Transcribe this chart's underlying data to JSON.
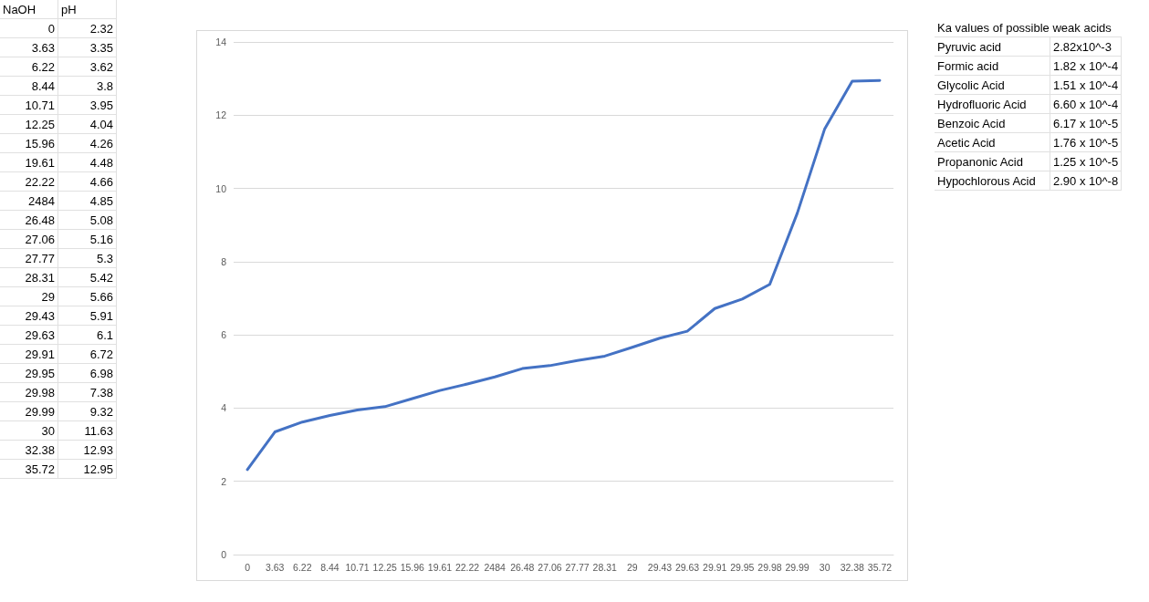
{
  "chart_data": [
    {
      "type": "other",
      "annotations": [
        "NaOH",
        "pH",
        "0",
        "2.32",
        "3.63",
        "3.35",
        "6.22",
        "3.62",
        "8.44",
        "3.8",
        "10.71",
        "3.95",
        "12.25",
        "4.04",
        "15.96",
        "4.26",
        "19.61",
        "4.48",
        "22.22",
        "4.66",
        "2484",
        "4.85",
        "26.48",
        "5.08",
        "27.06",
        "5.16",
        "27.77",
        "5.3",
        "28.31",
        "5.42",
        "29",
        "5.66",
        "29.43",
        "5.91",
        "29.63",
        "6.1",
        "29.91",
        "6.72",
        "29.95",
        "6.98",
        "29.98",
        "7.38",
        "29.99",
        "9.32",
        "30",
        "11.63",
        "32.38",
        "12.93",
        "35.72",
        "12.95"
      ]
    },
    {
      "type": "line",
      "categories": [
        "0",
        "3.63",
        "6.22",
        "8.44",
        "10.71",
        "12.25",
        "15.96",
        "19.61",
        "22.22",
        "2484",
        "26.48",
        "27.06",
        "27.77",
        "28.31",
        "29",
        "29.43",
        "29.63",
        "29.91",
        "29.95",
        "29.98",
        "29.99",
        "30",
        "32.38",
        "35.72"
      ],
      "values": [
        2.32,
        3.35,
        3.62,
        3.8,
        3.95,
        4.04,
        4.26,
        4.48,
        4.66,
        4.85,
        5.08,
        5.16,
        5.3,
        5.42,
        5.66,
        5.91,
        6.1,
        6.72,
        6.98,
        7.38,
        9.32,
        11.63,
        12.93,
        12.95
      ],
      "color": "#4472c4",
      "ylim": [
        0,
        14
      ],
      "yticks": [
        0,
        2,
        4,
        6,
        8,
        10,
        12,
        14
      ],
      "grid": "y",
      "marker": "none"
    },
    {
      "type": "other",
      "title": "Ka values of possible weak acids",
      "annotations": [
        "Pyruvic acid",
        "2.82x10^-3",
        "Formic acid",
        "1.82 x 10^-4",
        "Glycolic Acid",
        "1.51 x 10^-4",
        "Hydrofluoric Acid",
        "6.60 x 10^-4",
        "Benzoic Acid",
        "6.17 x 10^-5",
        "Acetic Acid",
        "1.76 x 10^-5",
        "Propanonic Acid",
        "1.25 x 10^-5",
        "Hypochlorous Acid",
        "2.90 x 10^-8"
      ]
    }
  ]
}
